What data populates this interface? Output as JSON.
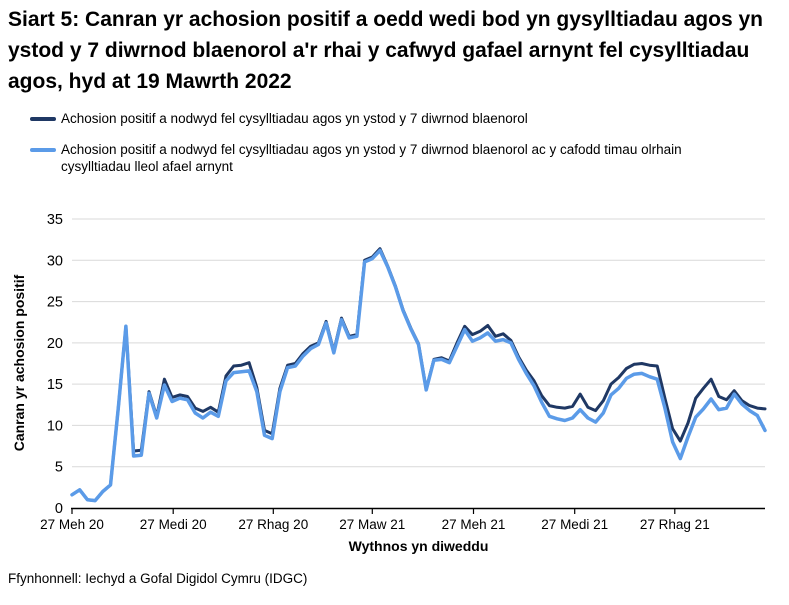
{
  "title": "Siart 5: Canran yr achosion positif a oedd wedi bod yn gysylltiadau agos yn ystod y 7 diwrnod blaenorol a'r rhai y cafwyd gafael arnynt fel cysylltiadau agos, hyd at 19 Mawrth 2022",
  "source": "Ffynhonnell: Iechyd a Gofal Digidol Cymru (IDGC)",
  "colors": {
    "series1": "#1f3864",
    "series2": "#5b9be8",
    "grid": "#d9d9d9",
    "axis": "#000000",
    "text": "#000000"
  },
  "chart_data": {
    "type": "line",
    "title": "Siart 5: Canran yr achosion positif a oedd wedi bod yn gysylltiadau agos yn ystod y 7 diwrnod blaenorol a'r rhai y cafwyd gafael arnynt fel cysylltiadau agos, hyd at 19 Mawrth 2022",
    "xlabel": "Wythnos yn diweddu",
    "ylabel": "Canran yr achosion positif",
    "ylim": [
      0,
      35
    ],
    "yticks": [
      0,
      5,
      10,
      15,
      20,
      25,
      30,
      35
    ],
    "grid": "horizontal",
    "legend_position": "top-left",
    "x_description": "91 weekly points; week 0 = wythnos yn diweddu 27 Meh 2020, week 90 = 19 Maw 2022",
    "n_points": 91,
    "xticks": [
      {
        "label": "27 Meh 20",
        "week": 0
      },
      {
        "label": "27 Medi 20",
        "week": 13.14
      },
      {
        "label": "27 Rhag 20",
        "week": 26.14
      },
      {
        "label": "27 Maw 21",
        "week": 39
      },
      {
        "label": "27 Meh 21",
        "week": 52.14
      },
      {
        "label": "27 Medi 21",
        "week": 65.29
      },
      {
        "label": "27 Rhag 21",
        "week": 78.29
      }
    ],
    "series": [
      {
        "name": "Achosion positif a nodwyd fel cysylltiadau agos yn ystod y 7 diwrnod blaenorol",
        "color": "#1f3864",
        "line_width": 3,
        "values": [
          1.6,
          2.2,
          1.0,
          0.9,
          2.0,
          2.8,
          12.0,
          22.0,
          6.9,
          7.0,
          14.1,
          11.1,
          15.6,
          13.4,
          13.7,
          13.5,
          12.1,
          11.7,
          12.2,
          11.6,
          16.0,
          17.2,
          17.3,
          17.6,
          14.6,
          9.4,
          9.0,
          14.5,
          17.3,
          17.5,
          18.7,
          19.6,
          20.0,
          22.6,
          19.0,
          23.0,
          20.8,
          21.0,
          30.0,
          30.4,
          31.4,
          29.3,
          26.9,
          24.0,
          21.8,
          19.9,
          14.4,
          18.0,
          18.2,
          17.8,
          20.0,
          22.0,
          21.0,
          21.4,
          22.1,
          20.8,
          21.1,
          20.3,
          18.3,
          16.7,
          15.4,
          13.6,
          12.4,
          12.2,
          12.1,
          12.3,
          13.8,
          12.2,
          11.8,
          13.0,
          15.0,
          15.8,
          16.9,
          17.4,
          17.5,
          17.3,
          17.2,
          13.3,
          9.6,
          8.1,
          10.3,
          13.3,
          14.5,
          15.6,
          13.5,
          13.1,
          14.2,
          13.0,
          12.4,
          12.1,
          12.0
        ]
      },
      {
        "name": "Achosion positif a nodwyd fel cysylltiadau agos yn ystod y 7 diwrnod blaenorol ac y cafodd timau olrhain cysylltiadau lleol afael arnynt",
        "color": "#5b9be8",
        "line_width": 3.5,
        "values": [
          1.6,
          2.2,
          1.0,
          0.9,
          2.0,
          2.8,
          12.0,
          22.0,
          6.3,
          6.4,
          13.9,
          10.9,
          14.9,
          12.9,
          13.3,
          13.1,
          11.5,
          10.9,
          11.6,
          11.1,
          15.4,
          16.4,
          16.5,
          16.6,
          14.1,
          8.8,
          8.4,
          14.1,
          17.0,
          17.2,
          18.4,
          19.3,
          19.8,
          22.4,
          18.8,
          22.8,
          20.6,
          20.8,
          29.8,
          30.2,
          31.2,
          29.2,
          26.8,
          23.9,
          21.7,
          19.8,
          14.3,
          17.9,
          18.0,
          17.6,
          19.6,
          21.6,
          20.2,
          20.6,
          21.2,
          20.2,
          20.4,
          20.0,
          18.0,
          16.3,
          14.8,
          12.8,
          11.1,
          10.8,
          10.6,
          10.9,
          11.9,
          10.9,
          10.4,
          11.5,
          13.7,
          14.5,
          15.7,
          16.2,
          16.3,
          15.9,
          15.6,
          12.1,
          8.0,
          6.0,
          8.6,
          11.0,
          12.0,
          13.2,
          11.9,
          12.1,
          13.8,
          12.6,
          11.8,
          11.2,
          9.4
        ]
      }
    ]
  }
}
